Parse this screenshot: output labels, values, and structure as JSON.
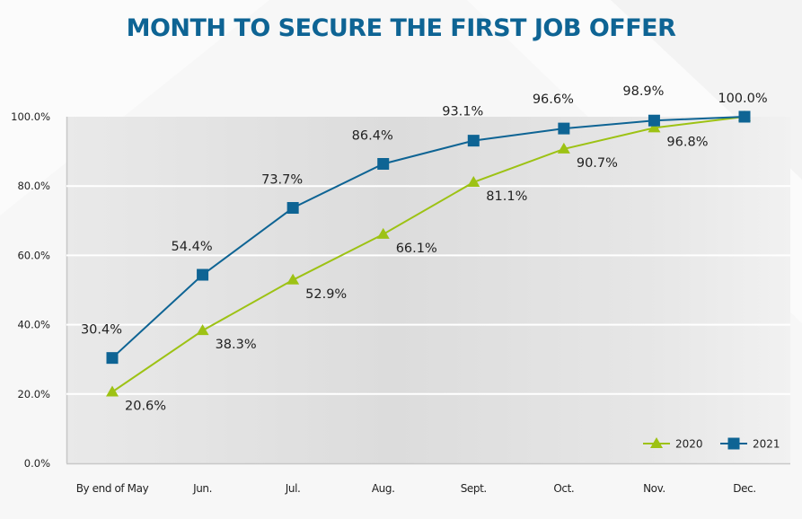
{
  "title": "MONTH TO SECURE THE FIRST JOB OFFER",
  "colors": {
    "title": "#0e6494",
    "series_2020": "#9dc214",
    "series_2021": "#0e6494"
  },
  "chart_data": {
    "type": "line",
    "title": "MONTH TO SECURE THE FIRST JOB OFFER",
    "xlabel": "",
    "ylabel": "",
    "categories": [
      "By end of May",
      "Jun.",
      "Jul.",
      "Aug.",
      "Sept.",
      "Oct.",
      "Nov.",
      "Dec."
    ],
    "ylim": [
      0,
      100
    ],
    "yticks": [
      0,
      20,
      40,
      60,
      80,
      100
    ],
    "ytick_labels": [
      "0.0%",
      "20.0%",
      "40.0%",
      "60.0%",
      "80.0%",
      "100.0%"
    ],
    "grid": true,
    "legend_position": "bottom-right",
    "series": [
      {
        "name": "2020",
        "marker": "triangle",
        "color": "#9dc214",
        "values": [
          20.6,
          38.3,
          52.9,
          66.1,
          81.1,
          90.7,
          96.8,
          100.0
        ],
        "labels": [
          "20.6%",
          "38.3%",
          "52.9%",
          "66.1%",
          "81.1%",
          "90.7%",
          "96.8%",
          ""
        ]
      },
      {
        "name": "2021",
        "marker": "square",
        "color": "#0e6494",
        "values": [
          30.4,
          54.4,
          73.7,
          86.4,
          93.1,
          96.6,
          98.9,
          100.0
        ],
        "labels": [
          "30.4%",
          "54.4%",
          "73.7%",
          "86.4%",
          "93.1%",
          "96.6%",
          "98.9%",
          "100.0%"
        ]
      }
    ]
  }
}
